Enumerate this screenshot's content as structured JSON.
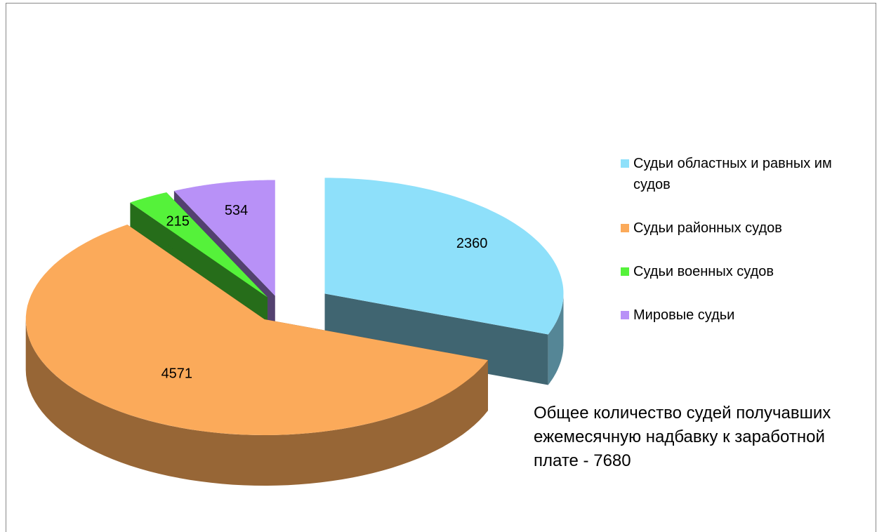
{
  "chart_data": {
    "type": "pie",
    "categories": [
      "Судьи областных и равных им судов",
      "Судьи районных судов",
      "Судьи военных судов",
      "Мировые судьи"
    ],
    "values": [
      2360,
      4571,
      215,
      534
    ],
    "colors": [
      "#8ee0fa",
      "#fbaa5a",
      "#55f23a",
      "#b891f7"
    ],
    "annotation": "Общее количество судей получавших ежемесячную надбавку к заработной плате - 7680"
  }
}
